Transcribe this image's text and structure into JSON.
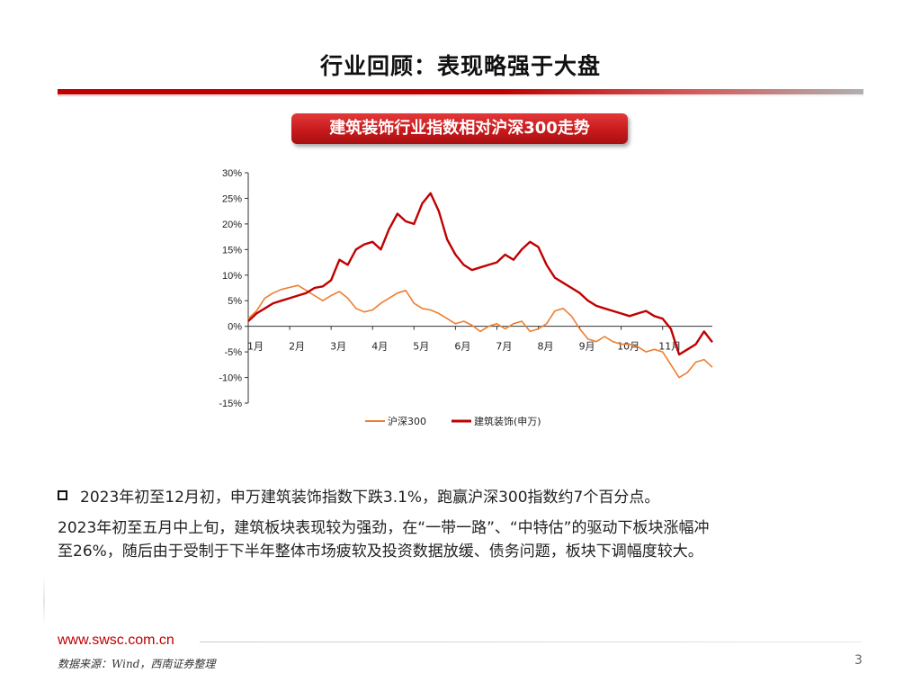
{
  "slide": {
    "title": "行业回顾：表现略强于大盘",
    "badge": "建筑装饰行业指数相对沪深300走势",
    "bullet": "2023年初至12月初，申万建筑装饰指数下跌3.1%，跑赢沪深300指数约7个百分点。",
    "paragraph_line1": "2023年初至五月中上旬，建筑板块表现较为强劲，在“一带一路”、“中特估”的驱动下板块涨幅冲",
    "paragraph_line2": "至26%，随后由于受制于下半年整体市场疲软及投资数据放缓、债务问题，板块下调幅度较大。",
    "website": "www.swsc.com.cn",
    "source": "数据来源：Wind，西南证券整理",
    "page_number": "3"
  },
  "colors": {
    "accent_red": "#c00000",
    "series_hs300": "#ed7d31",
    "series_construction": "#c00000"
  },
  "chart_data": {
    "type": "line",
    "title": "建筑装饰行业指数相对沪深300走势",
    "ylim": [
      -15,
      30
    ],
    "yticks": [
      "30%",
      "25%",
      "20%",
      "15%",
      "10%",
      "5%",
      "0%",
      "-5%",
      "-10%",
      "-15%"
    ],
    "ytick_values": [
      30,
      25,
      20,
      15,
      10,
      5,
      0,
      -5,
      -10,
      -15
    ],
    "months": [
      "1月",
      "2月",
      "3月",
      "4月",
      "5月",
      "6月",
      "7月",
      "8月",
      "9月",
      "10月",
      "11月"
    ],
    "month_positions": [
      0,
      1,
      2,
      3,
      4,
      5,
      6,
      7,
      8,
      9,
      10
    ],
    "x_max": 11.2,
    "legend_position": "bottom",
    "series": [
      {
        "name": "沪深300",
        "color": "#ed7d31",
        "x": [
          0,
          0.2,
          0.4,
          0.6,
          0.8,
          1.0,
          1.2,
          1.4,
          1.6,
          1.8,
          2.0,
          2.2,
          2.4,
          2.6,
          2.8,
          3.0,
          3.2,
          3.4,
          3.6,
          3.8,
          4.0,
          4.2,
          4.4,
          4.6,
          4.8,
          5.0,
          5.2,
          5.4,
          5.6,
          5.8,
          6.0,
          6.2,
          6.4,
          6.6,
          6.8,
          7.0,
          7.2,
          7.4,
          7.6,
          7.8,
          8.0,
          8.2,
          8.4,
          8.6,
          8.8,
          9.0,
          9.2,
          9.4,
          9.6,
          9.8,
          10.0,
          10.2,
          10.4,
          10.6,
          10.8,
          11.0,
          11.2
        ],
        "values": [
          1.5,
          3.0,
          5.5,
          6.5,
          7.2,
          7.6,
          8.0,
          7.0,
          6.0,
          5.0,
          6.0,
          6.8,
          5.5,
          3.5,
          2.8,
          3.2,
          4.5,
          5.5,
          6.5,
          7.0,
          4.5,
          3.5,
          3.2,
          2.5,
          1.5,
          0.5,
          1.0,
          0.2,
          -1.0,
          0.0,
          0.5,
          -0.5,
          0.5,
          1.0,
          -1.0,
          -0.5,
          0.5,
          3.0,
          3.5,
          2.0,
          -0.5,
          -2.5,
          -3.0,
          -2.0,
          -3.0,
          -3.5,
          -3.5,
          -4.0,
          -5.0,
          -4.5,
          -5.0,
          -7.5,
          -10.0,
          -9.0,
          -7.0,
          -6.5,
          -8.0
        ]
      },
      {
        "name": "建筑装饰(申万)",
        "color": "#c00000",
        "x": [
          0,
          0.2,
          0.4,
          0.6,
          0.8,
          1.0,
          1.2,
          1.4,
          1.6,
          1.8,
          2.0,
          2.2,
          2.4,
          2.6,
          2.8,
          3.0,
          3.2,
          3.4,
          3.6,
          3.8,
          4.0,
          4.2,
          4.4,
          4.6,
          4.8,
          5.0,
          5.2,
          5.4,
          5.6,
          5.8,
          6.0,
          6.2,
          6.4,
          6.6,
          6.8,
          7.0,
          7.2,
          7.4,
          7.6,
          7.8,
          8.0,
          8.2,
          8.4,
          8.6,
          8.8,
          9.0,
          9.2,
          9.4,
          9.6,
          9.8,
          10.0,
          10.2,
          10.4,
          10.6,
          10.8,
          11.0,
          11.2
        ],
        "values": [
          1.0,
          2.5,
          3.5,
          4.5,
          5.0,
          5.5,
          6.0,
          6.5,
          7.5,
          7.8,
          9.0,
          13.0,
          12.0,
          15.0,
          16.0,
          16.5,
          15.0,
          19.0,
          22.0,
          20.5,
          20.0,
          24.0,
          26.0,
          22.5,
          17.0,
          14.0,
          12.0,
          11.0,
          11.5,
          12.0,
          12.5,
          14.0,
          13.0,
          15.0,
          16.5,
          15.5,
          12.0,
          9.5,
          8.5,
          7.5,
          6.5,
          5.0,
          4.0,
          3.5,
          3.0,
          2.5,
          2.0,
          2.5,
          3.0,
          2.0,
          1.5,
          -0.5,
          -5.5,
          -4.5,
          -3.5,
          -1.0,
          -3.1
        ]
      }
    ]
  }
}
